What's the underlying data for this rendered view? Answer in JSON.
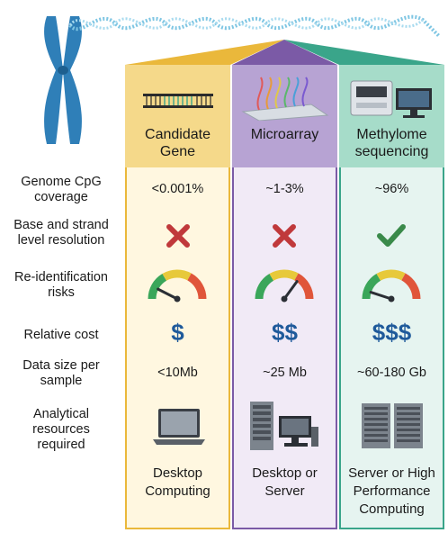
{
  "columns": [
    {
      "title_line1": "Candidate",
      "title_line2": "Gene",
      "accent": "#eab83b",
      "coverage": "<0.001%",
      "resolution": "cross",
      "risk_level": 0.15,
      "cost": "$",
      "data_size": "<10Mb",
      "resources_icon": "laptop-icon",
      "resources_line1": "Desktop",
      "resources_line2": "Computing",
      "resources_line3": ""
    },
    {
      "title_line1": "Microarray",
      "title_line2": "",
      "accent": "#7b5aa6",
      "coverage": "~1-3%",
      "resolution": "cross",
      "risk_level": 0.7,
      "cost": "$$",
      "data_size": "~25 Mb",
      "resources_icon": "desktop-server-icon",
      "resources_line1": "Desktop or",
      "resources_line2": "Server",
      "resources_line3": ""
    },
    {
      "title_line1": "Methylome",
      "title_line2": "sequencing",
      "accent": "#3aa58a",
      "coverage": "~96%",
      "resolution": "check",
      "risk_level": 0.1,
      "cost": "$$$",
      "data_size": "~60-180 Gb",
      "resources_icon": "server-rack-icon",
      "resources_line1": "Server or High",
      "resources_line2": "Performance",
      "resources_line3": "Computing"
    }
  ],
  "row_labels": {
    "coverage_1": "Genome CpG",
    "coverage_2": "coverage",
    "resolution_1": "Base and strand",
    "resolution_2": "level resolution",
    "risk_1": "Re-identification",
    "risk_2": "risks",
    "cost_1": "Relative cost",
    "size_1": "Data size per",
    "size_2": "sample",
    "resources_1": "Analytical",
    "resources_2": "resources",
    "resources_3": "required"
  },
  "colors": {
    "cross": "#c0393b",
    "check": "#3a8a4a",
    "cost": "#1f5a9b",
    "dna": "#7fc6e3",
    "chromosome": "#2f7fb8"
  }
}
